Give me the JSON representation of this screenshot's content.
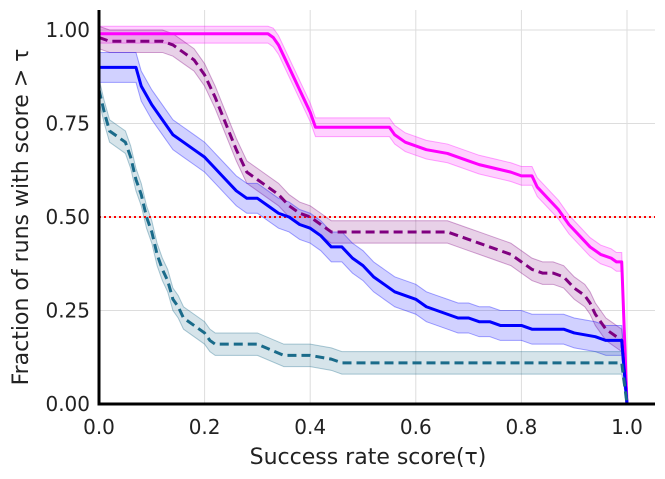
{
  "chart_data": {
    "type": "line",
    "title": "",
    "xlabel": "Success rate score(τ)",
    "ylabel": "Fraction of runs with score > τ",
    "xlim": [
      0.0,
      1.0
    ],
    "ylim": [
      0.0,
      1.0
    ],
    "xticks": [
      "0.0",
      "0.2",
      "0.4",
      "0.6",
      "0.8",
      "1.0"
    ],
    "yticks": [
      "0.00",
      "0.25",
      "0.50",
      "0.75",
      "1.00"
    ],
    "grid": true,
    "legend": "none",
    "reference_line": {
      "y": 0.5,
      "color": "#ff0000",
      "style": "dotted"
    },
    "series": [
      {
        "name": "magenta",
        "color": "#ff00ff",
        "dashed": false,
        "band": 0.025,
        "points": [
          [
            0,
            0.99
          ],
          [
            0.02,
            0.99
          ],
          [
            0.2,
            0.99
          ],
          [
            0.32,
            0.99
          ],
          [
            0.33,
            0.98
          ],
          [
            0.34,
            0.96
          ],
          [
            0.35,
            0.93
          ],
          [
            0.36,
            0.9
          ],
          [
            0.37,
            0.87
          ],
          [
            0.38,
            0.84
          ],
          [
            0.39,
            0.81
          ],
          [
            0.4,
            0.78
          ],
          [
            0.41,
            0.74
          ],
          [
            0.42,
            0.74
          ],
          [
            0.55,
            0.74
          ],
          [
            0.56,
            0.72
          ],
          [
            0.58,
            0.7
          ],
          [
            0.62,
            0.68
          ],
          [
            0.66,
            0.67
          ],
          [
            0.7,
            0.65
          ],
          [
            0.72,
            0.64
          ],
          [
            0.75,
            0.63
          ],
          [
            0.78,
            0.62
          ],
          [
            0.8,
            0.61
          ],
          [
            0.82,
            0.61
          ],
          [
            0.83,
            0.58
          ],
          [
            0.85,
            0.55
          ],
          [
            0.87,
            0.52
          ],
          [
            0.89,
            0.48
          ],
          [
            0.91,
            0.45
          ],
          [
            0.93,
            0.42
          ],
          [
            0.95,
            0.4
          ],
          [
            0.97,
            0.39
          ],
          [
            0.98,
            0.38
          ],
          [
            0.99,
            0.38
          ],
          [
            1.0,
            0.0
          ]
        ]
      },
      {
        "name": "purple-dashed",
        "color": "#800080",
        "dashed": true,
        "band": 0.03,
        "points": [
          [
            0,
            0.98
          ],
          [
            0.02,
            0.97
          ],
          [
            0.12,
            0.97
          ],
          [
            0.14,
            0.96
          ],
          [
            0.16,
            0.94
          ],
          [
            0.18,
            0.92
          ],
          [
            0.2,
            0.88
          ],
          [
            0.22,
            0.82
          ],
          [
            0.24,
            0.75
          ],
          [
            0.26,
            0.68
          ],
          [
            0.28,
            0.62
          ],
          [
            0.3,
            0.6
          ],
          [
            0.32,
            0.58
          ],
          [
            0.34,
            0.56
          ],
          [
            0.36,
            0.53
          ],
          [
            0.38,
            0.51
          ],
          [
            0.4,
            0.5
          ],
          [
            0.42,
            0.48
          ],
          [
            0.44,
            0.46
          ],
          [
            0.46,
            0.46
          ],
          [
            0.66,
            0.46
          ],
          [
            0.68,
            0.45
          ],
          [
            0.7,
            0.44
          ],
          [
            0.72,
            0.43
          ],
          [
            0.74,
            0.42
          ],
          [
            0.76,
            0.41
          ],
          [
            0.78,
            0.4
          ],
          [
            0.8,
            0.38
          ],
          [
            0.82,
            0.36
          ],
          [
            0.84,
            0.35
          ],
          [
            0.86,
            0.35
          ],
          [
            0.88,
            0.34
          ],
          [
            0.9,
            0.31
          ],
          [
            0.92,
            0.29
          ],
          [
            0.93,
            0.27
          ],
          [
            0.94,
            0.24
          ],
          [
            0.95,
            0.22
          ],
          [
            0.96,
            0.2
          ],
          [
            0.97,
            0.19
          ],
          [
            0.98,
            0.18
          ],
          [
            0.99,
            0.17
          ],
          [
            1.0,
            0.0
          ]
        ]
      },
      {
        "name": "blue",
        "color": "#0000ff",
        "dashed": false,
        "band": 0.04,
        "points": [
          [
            0,
            0.9
          ],
          [
            0.07,
            0.9
          ],
          [
            0.08,
            0.85
          ],
          [
            0.1,
            0.8
          ],
          [
            0.12,
            0.76
          ],
          [
            0.14,
            0.72
          ],
          [
            0.16,
            0.7
          ],
          [
            0.18,
            0.68
          ],
          [
            0.2,
            0.66
          ],
          [
            0.22,
            0.63
          ],
          [
            0.24,
            0.6
          ],
          [
            0.26,
            0.57
          ],
          [
            0.28,
            0.55
          ],
          [
            0.3,
            0.55
          ],
          [
            0.32,
            0.53
          ],
          [
            0.34,
            0.51
          ],
          [
            0.36,
            0.5
          ],
          [
            0.38,
            0.48
          ],
          [
            0.4,
            0.47
          ],
          [
            0.42,
            0.45
          ],
          [
            0.44,
            0.42
          ],
          [
            0.46,
            0.42
          ],
          [
            0.48,
            0.39
          ],
          [
            0.5,
            0.37
          ],
          [
            0.52,
            0.34
          ],
          [
            0.54,
            0.32
          ],
          [
            0.56,
            0.3
          ],
          [
            0.58,
            0.29
          ],
          [
            0.6,
            0.28
          ],
          [
            0.62,
            0.26
          ],
          [
            0.64,
            0.25
          ],
          [
            0.66,
            0.24
          ],
          [
            0.68,
            0.23
          ],
          [
            0.7,
            0.23
          ],
          [
            0.72,
            0.22
          ],
          [
            0.74,
            0.22
          ],
          [
            0.76,
            0.21
          ],
          [
            0.8,
            0.21
          ],
          [
            0.82,
            0.2
          ],
          [
            0.88,
            0.2
          ],
          [
            0.9,
            0.19
          ],
          [
            0.94,
            0.18
          ],
          [
            0.96,
            0.17
          ],
          [
            0.99,
            0.17
          ],
          [
            1.0,
            0.0
          ]
        ]
      },
      {
        "name": "teal-dashed",
        "color": "#1a6b8a",
        "dashed": true,
        "band": 0.03,
        "points": [
          [
            0,
            0.84
          ],
          [
            0.01,
            0.78
          ],
          [
            0.02,
            0.73
          ],
          [
            0.04,
            0.71
          ],
          [
            0.05,
            0.7
          ],
          [
            0.06,
            0.66
          ],
          [
            0.07,
            0.6
          ],
          [
            0.08,
            0.56
          ],
          [
            0.09,
            0.5
          ],
          [
            0.1,
            0.46
          ],
          [
            0.11,
            0.4
          ],
          [
            0.12,
            0.36
          ],
          [
            0.13,
            0.33
          ],
          [
            0.14,
            0.28
          ],
          [
            0.15,
            0.26
          ],
          [
            0.16,
            0.23
          ],
          [
            0.18,
            0.21
          ],
          [
            0.2,
            0.19
          ],
          [
            0.21,
            0.17
          ],
          [
            0.22,
            0.16
          ],
          [
            0.3,
            0.16
          ],
          [
            0.35,
            0.13
          ],
          [
            0.4,
            0.13
          ],
          [
            0.44,
            0.12
          ],
          [
            0.46,
            0.11
          ],
          [
            0.6,
            0.11
          ],
          [
            0.7,
            0.11
          ],
          [
            0.8,
            0.11
          ],
          [
            0.9,
            0.11
          ],
          [
            0.98,
            0.11
          ],
          [
            0.99,
            0.11
          ],
          [
            1.0,
            0.0
          ]
        ]
      }
    ]
  }
}
